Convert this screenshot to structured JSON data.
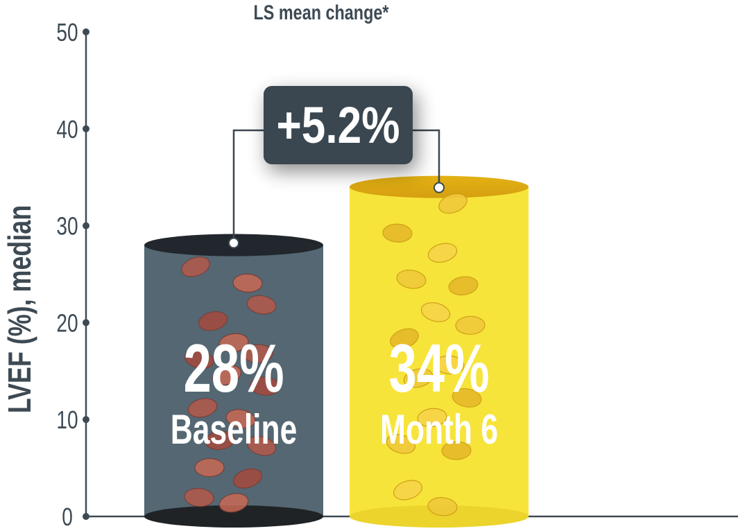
{
  "chart_data": {
    "type": "bar",
    "title": "LS mean change*",
    "ylabel": "LVEF (%), median",
    "xlabel": "",
    "ylim": [
      0,
      50
    ],
    "yticks": [
      0,
      10,
      20,
      30,
      40,
      50
    ],
    "categories": [
      "Baseline",
      "Month 6"
    ],
    "values": [
      28,
      34
    ],
    "value_labels": [
      "28%",
      "34%"
    ],
    "bar_colors": [
      "#546773",
      "#f7e43a"
    ],
    "axis_color": "#3d4a54",
    "annotation": {
      "text": "+5.2%",
      "between": [
        "Baseline",
        "Month 6"
      ],
      "box_color": "#3a4750"
    },
    "grid": false,
    "legend": "none"
  }
}
